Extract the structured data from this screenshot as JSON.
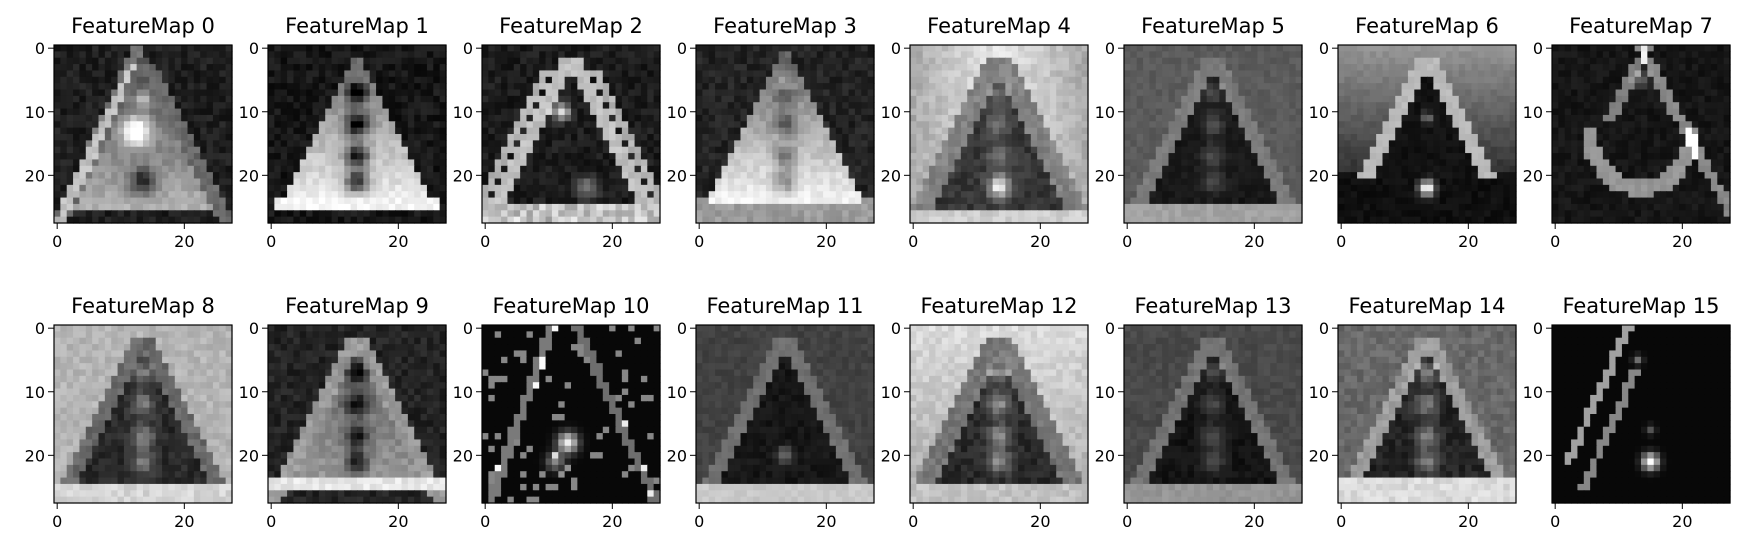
{
  "figure": {
    "background": "#ffffff",
    "colormap": "gray",
    "axis_color": "#000000"
  },
  "chart_data": [
    {
      "type": "heatmap",
      "title": "FeatureMap 0",
      "kind": "tri_diag",
      "xlim": [
        -0.5,
        27.5
      ],
      "ylim": [
        27.5,
        -0.5
      ],
      "xticks": [
        0,
        20
      ],
      "yticks": [
        0,
        10,
        20
      ]
    },
    {
      "type": "heatmap",
      "title": "FeatureMap 1",
      "kind": "tri_bright",
      "xlim": [
        -0.5,
        27.5
      ],
      "ylim": [
        27.5,
        -0.5
      ],
      "xticks": [
        0,
        20
      ],
      "yticks": [
        0,
        10,
        20
      ]
    },
    {
      "type": "heatmap",
      "title": "FeatureMap 2",
      "kind": "tri_edges",
      "xlim": [
        -0.5,
        27.5
      ],
      "ylim": [
        27.5,
        -0.5
      ],
      "xticks": [
        0,
        20
      ],
      "yticks": [
        0,
        10,
        20
      ]
    },
    {
      "type": "heatmap",
      "title": "FeatureMap 3",
      "kind": "tri_soft",
      "xlim": [
        -0.5,
        27.5
      ],
      "ylim": [
        27.5,
        -0.5
      ],
      "xticks": [
        0,
        20
      ],
      "yticks": [
        0,
        10,
        20
      ]
    },
    {
      "type": "heatmap",
      "title": "FeatureMap 4",
      "kind": "bg_bright",
      "xlim": [
        -0.5,
        27.5
      ],
      "ylim": [
        27.5,
        -0.5
      ],
      "xticks": [
        0,
        20
      ],
      "yticks": [
        0,
        10,
        20
      ]
    },
    {
      "type": "heatmap",
      "title": "FeatureMap 5",
      "kind": "mid_dark",
      "xlim": [
        -0.5,
        27.5
      ],
      "ylim": [
        27.5,
        -0.5
      ],
      "xticks": [
        0,
        20
      ],
      "yticks": [
        0,
        10,
        20
      ]
    },
    {
      "type": "heatmap",
      "title": "FeatureMap 6",
      "kind": "wedge_spot",
      "xlim": [
        -0.5,
        27.5
      ],
      "ylim": [
        27.5,
        -0.5
      ],
      "xticks": [
        0,
        20
      ],
      "yticks": [
        0,
        10,
        20
      ]
    },
    {
      "type": "heatmap",
      "title": "FeatureMap 7",
      "kind": "arc_dark",
      "xlim": [
        -0.5,
        27.5
      ],
      "ylim": [
        27.5,
        -0.5
      ],
      "xticks": [
        0,
        20
      ],
      "yticks": [
        0,
        10,
        20
      ]
    },
    {
      "type": "heatmap",
      "title": "FeatureMap 8",
      "kind": "bg_grey",
      "xlim": [
        -0.5,
        27.5
      ],
      "ylim": [
        27.5,
        -0.5
      ],
      "xticks": [
        0,
        20
      ],
      "yticks": [
        0,
        10,
        20
      ]
    },
    {
      "type": "heatmap",
      "title": "FeatureMap 9",
      "kind": "grey_tri",
      "xlim": [
        -0.5,
        27.5
      ],
      "ylim": [
        27.5,
        -0.5
      ],
      "xticks": [
        0,
        20
      ],
      "yticks": [
        0,
        10,
        20
      ]
    },
    {
      "type": "heatmap",
      "title": "FeatureMap 10",
      "kind": "sparse",
      "xlim": [
        -0.5,
        27.5
      ],
      "ylim": [
        27.5,
        -0.5
      ],
      "xticks": [
        0,
        20
      ],
      "yticks": [
        0,
        10,
        20
      ]
    },
    {
      "type": "heatmap",
      "title": "FeatureMap 11",
      "kind": "dark_base",
      "xlim": [
        -0.5,
        27.5
      ],
      "ylim": [
        27.5,
        -0.5
      ],
      "xticks": [
        0,
        20
      ],
      "yticks": [
        0,
        10,
        20
      ]
    },
    {
      "type": "heatmap",
      "title": "FeatureMap 12",
      "kind": "bg_bright2",
      "xlim": [
        -0.5,
        27.5
      ],
      "ylim": [
        27.5,
        -0.5
      ],
      "xticks": [
        0,
        20
      ],
      "yticks": [
        0,
        10,
        20
      ]
    },
    {
      "type": "heatmap",
      "title": "FeatureMap 13",
      "kind": "mid_dark2",
      "xlim": [
        -0.5,
        27.5
      ],
      "ylim": [
        27.5,
        -0.5
      ],
      "xticks": [
        0,
        20
      ],
      "yticks": [
        0,
        10,
        20
      ]
    },
    {
      "type": "heatmap",
      "title": "FeatureMap 14",
      "kind": "grey_base",
      "xlim": [
        -0.5,
        27.5
      ],
      "ylim": [
        27.5,
        -0.5
      ],
      "xticks": [
        0,
        20
      ],
      "yticks": [
        0,
        10,
        20
      ]
    },
    {
      "type": "heatmap",
      "title": "FeatureMap 15",
      "kind": "lines_spot",
      "xlim": [
        -0.5,
        27.5
      ],
      "ylim": [
        27.5,
        -0.5
      ],
      "xticks": [
        0,
        20
      ],
      "yticks": [
        0,
        10,
        20
      ]
    }
  ]
}
